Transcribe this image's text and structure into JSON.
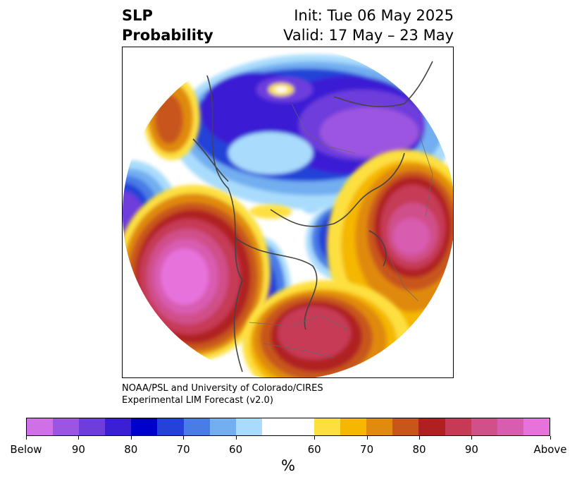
{
  "title": {
    "left_line1": "SLP",
    "left_line2": "Probability",
    "right_line1": "Init: Tue 06 May 2025",
    "right_line2": "Valid: 17 May – 23 May"
  },
  "credit": {
    "line1": "NOAA/PSL and University of Colorado/CIRES",
    "line2": "Experimental LIM Forecast (v2.0)"
  },
  "colorbar": {
    "unit": "%",
    "colors": [
      "#d070e6",
      "#9c55e0",
      "#6e3ddc",
      "#3a1fd4",
      "#0000cc",
      "#2442d8",
      "#4a7ce6",
      "#72aef0",
      "#a9dcfc",
      "#ffffff",
      "#ffffff",
      "#fde040",
      "#f5b700",
      "#e08a10",
      "#c8561a",
      "#b02020",
      "#c63a56",
      "#d0508a",
      "#d85cb0",
      "#e672dc"
    ],
    "ticks": [
      "Below",
      "90",
      "80",
      "70",
      "60",
      "60",
      "70",
      "80",
      "90",
      "Above"
    ]
  },
  "map": {
    "projection": "polar stereographic",
    "palette": {
      "below_strong": "#9c55e0",
      "below_mid": "#2442d8",
      "below_light": "#a9dcfc",
      "above_light": "#fde040",
      "above_mid": "#e08a10",
      "above_strong": "#c63a56",
      "above_max": "#e672dc"
    }
  }
}
